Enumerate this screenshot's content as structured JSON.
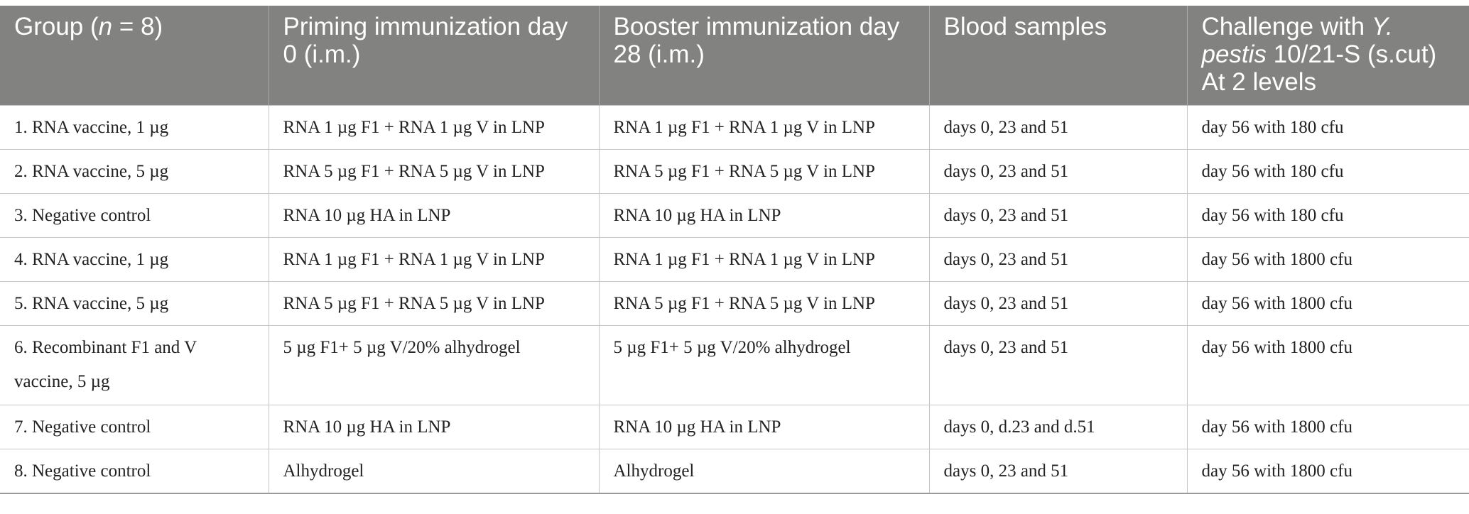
{
  "table": {
    "headers": {
      "group_pre": "Group (",
      "group_n": "n",
      "group_post": " = 8)",
      "priming": "Priming immunization day 0 (i.m.)",
      "booster": "Booster immunization day 28 (i.m.)",
      "blood": "Blood samples",
      "challenge_pre": "Challenge with ",
      "challenge_species": "Y. pestis",
      "challenge_post": " 10/21-S (s.cut) At 2 levels"
    },
    "rows": [
      {
        "group": "1. RNA vaccine, 1 µg",
        "priming": "RNA 1 µg F1 + RNA 1 µg V in LNP",
        "booster": "RNA 1 µg F1 + RNA 1 µg V in LNP",
        "blood": "days 0, 23 and 51",
        "challenge": "day 56 with 180 cfu"
      },
      {
        "group": "2. RNA vaccine, 5 µg",
        "priming": "RNA 5 µg F1 + RNA 5 µg V in LNP",
        "booster": "RNA 5 µg F1 + RNA 5 µg V in LNP",
        "blood": "days 0, 23 and 51",
        "challenge": "day 56 with 180 cfu"
      },
      {
        "group": "3. Negative control",
        "priming": "RNA 10 µg HA in LNP",
        "booster": "RNA 10 µg HA in LNP",
        "blood": "days 0, 23 and 51",
        "challenge": "day 56 with 180 cfu"
      },
      {
        "group": "4. RNA vaccine, 1 µg",
        "priming": "RNA 1 µg F1 + RNA 1 µg V in LNP",
        "booster": "RNA 1 µg F1 + RNA 1 µg V in LNP",
        "blood": "days 0, 23 and 51",
        "challenge": "day 56 with 1800 cfu"
      },
      {
        "group": "5. RNA vaccine, 5 µg",
        "priming": "RNA 5 µg F1 + RNA 5 µg V in LNP",
        "booster": "RNA 5 µg F1 + RNA 5 µg V in LNP",
        "blood": "days 0, 23 and 51",
        "challenge": "day 56 with 1800 cfu"
      },
      {
        "group": "6. Recombinant F1 and V vaccine, 5 µg",
        "priming": "5 µg F1+ 5 µg V/20% alhydrogel",
        "booster": "5 µg F1+ 5 µg V/20% alhydrogel",
        "blood": "days 0, 23 and 51",
        "challenge": "day 56 with 1800 cfu"
      },
      {
        "group": "7. Negative control",
        "priming": "RNA 10 µg HA in LNP",
        "booster": "RNA 10 µg HA in LNP",
        "blood": "days 0, d.23 and d.51",
        "challenge": "day 56 with 1800 cfu"
      },
      {
        "group": "8. Negative control",
        "priming": "Alhydrogel",
        "booster": "Alhydrogel",
        "blood": "days 0, 23 and 51",
        "challenge": "day 56 with 1800 cfu"
      }
    ]
  }
}
